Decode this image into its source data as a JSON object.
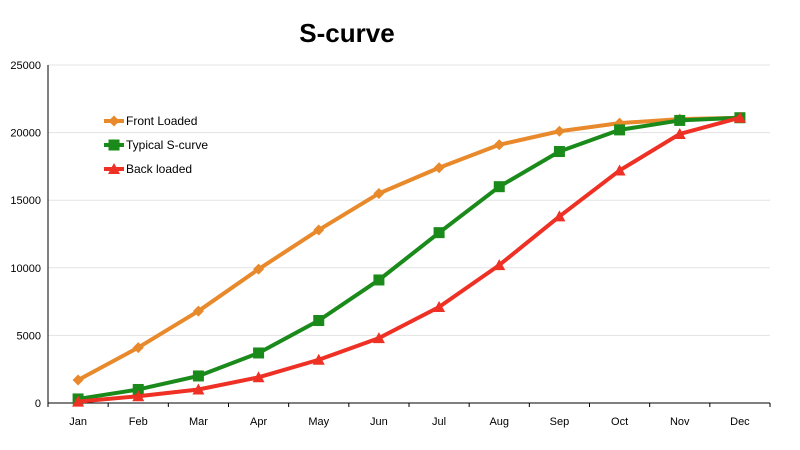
{
  "chart_data": {
    "type": "line",
    "title": "S-curve",
    "xlabel": "",
    "ylabel": "",
    "categories": [
      "Jan",
      "Feb",
      "Mar",
      "Apr",
      "May",
      "Jun",
      "Jul",
      "Aug",
      "Sep",
      "Oct",
      "Nov",
      "Dec"
    ],
    "ylim": [
      0,
      25000
    ],
    "yticks": [
      "0",
      "5000",
      "10000",
      "15000",
      "20000",
      "25000"
    ],
    "grid": true,
    "legend_position": "top-left",
    "series": [
      {
        "name": "Front Loaded",
        "color": "#e8892b",
        "marker": "diamond",
        "values": [
          1700,
          4100,
          6800,
          9900,
          12800,
          15500,
          17400,
          19100,
          20100,
          20700,
          21000,
          21100
        ]
      },
      {
        "name": "Typical S-curve",
        "color": "#1a8a1a",
        "marker": "square",
        "values": [
          300,
          1000,
          2000,
          3700,
          6100,
          9100,
          12600,
          16000,
          18600,
          20200,
          20900,
          21100
        ]
      },
      {
        "name": "Back loaded",
        "color": "#ee3124",
        "marker": "triangle",
        "values": [
          100,
          500,
          1000,
          1900,
          3200,
          4800,
          7100,
          10200,
          13800,
          17200,
          19900,
          21100
        ]
      }
    ]
  }
}
